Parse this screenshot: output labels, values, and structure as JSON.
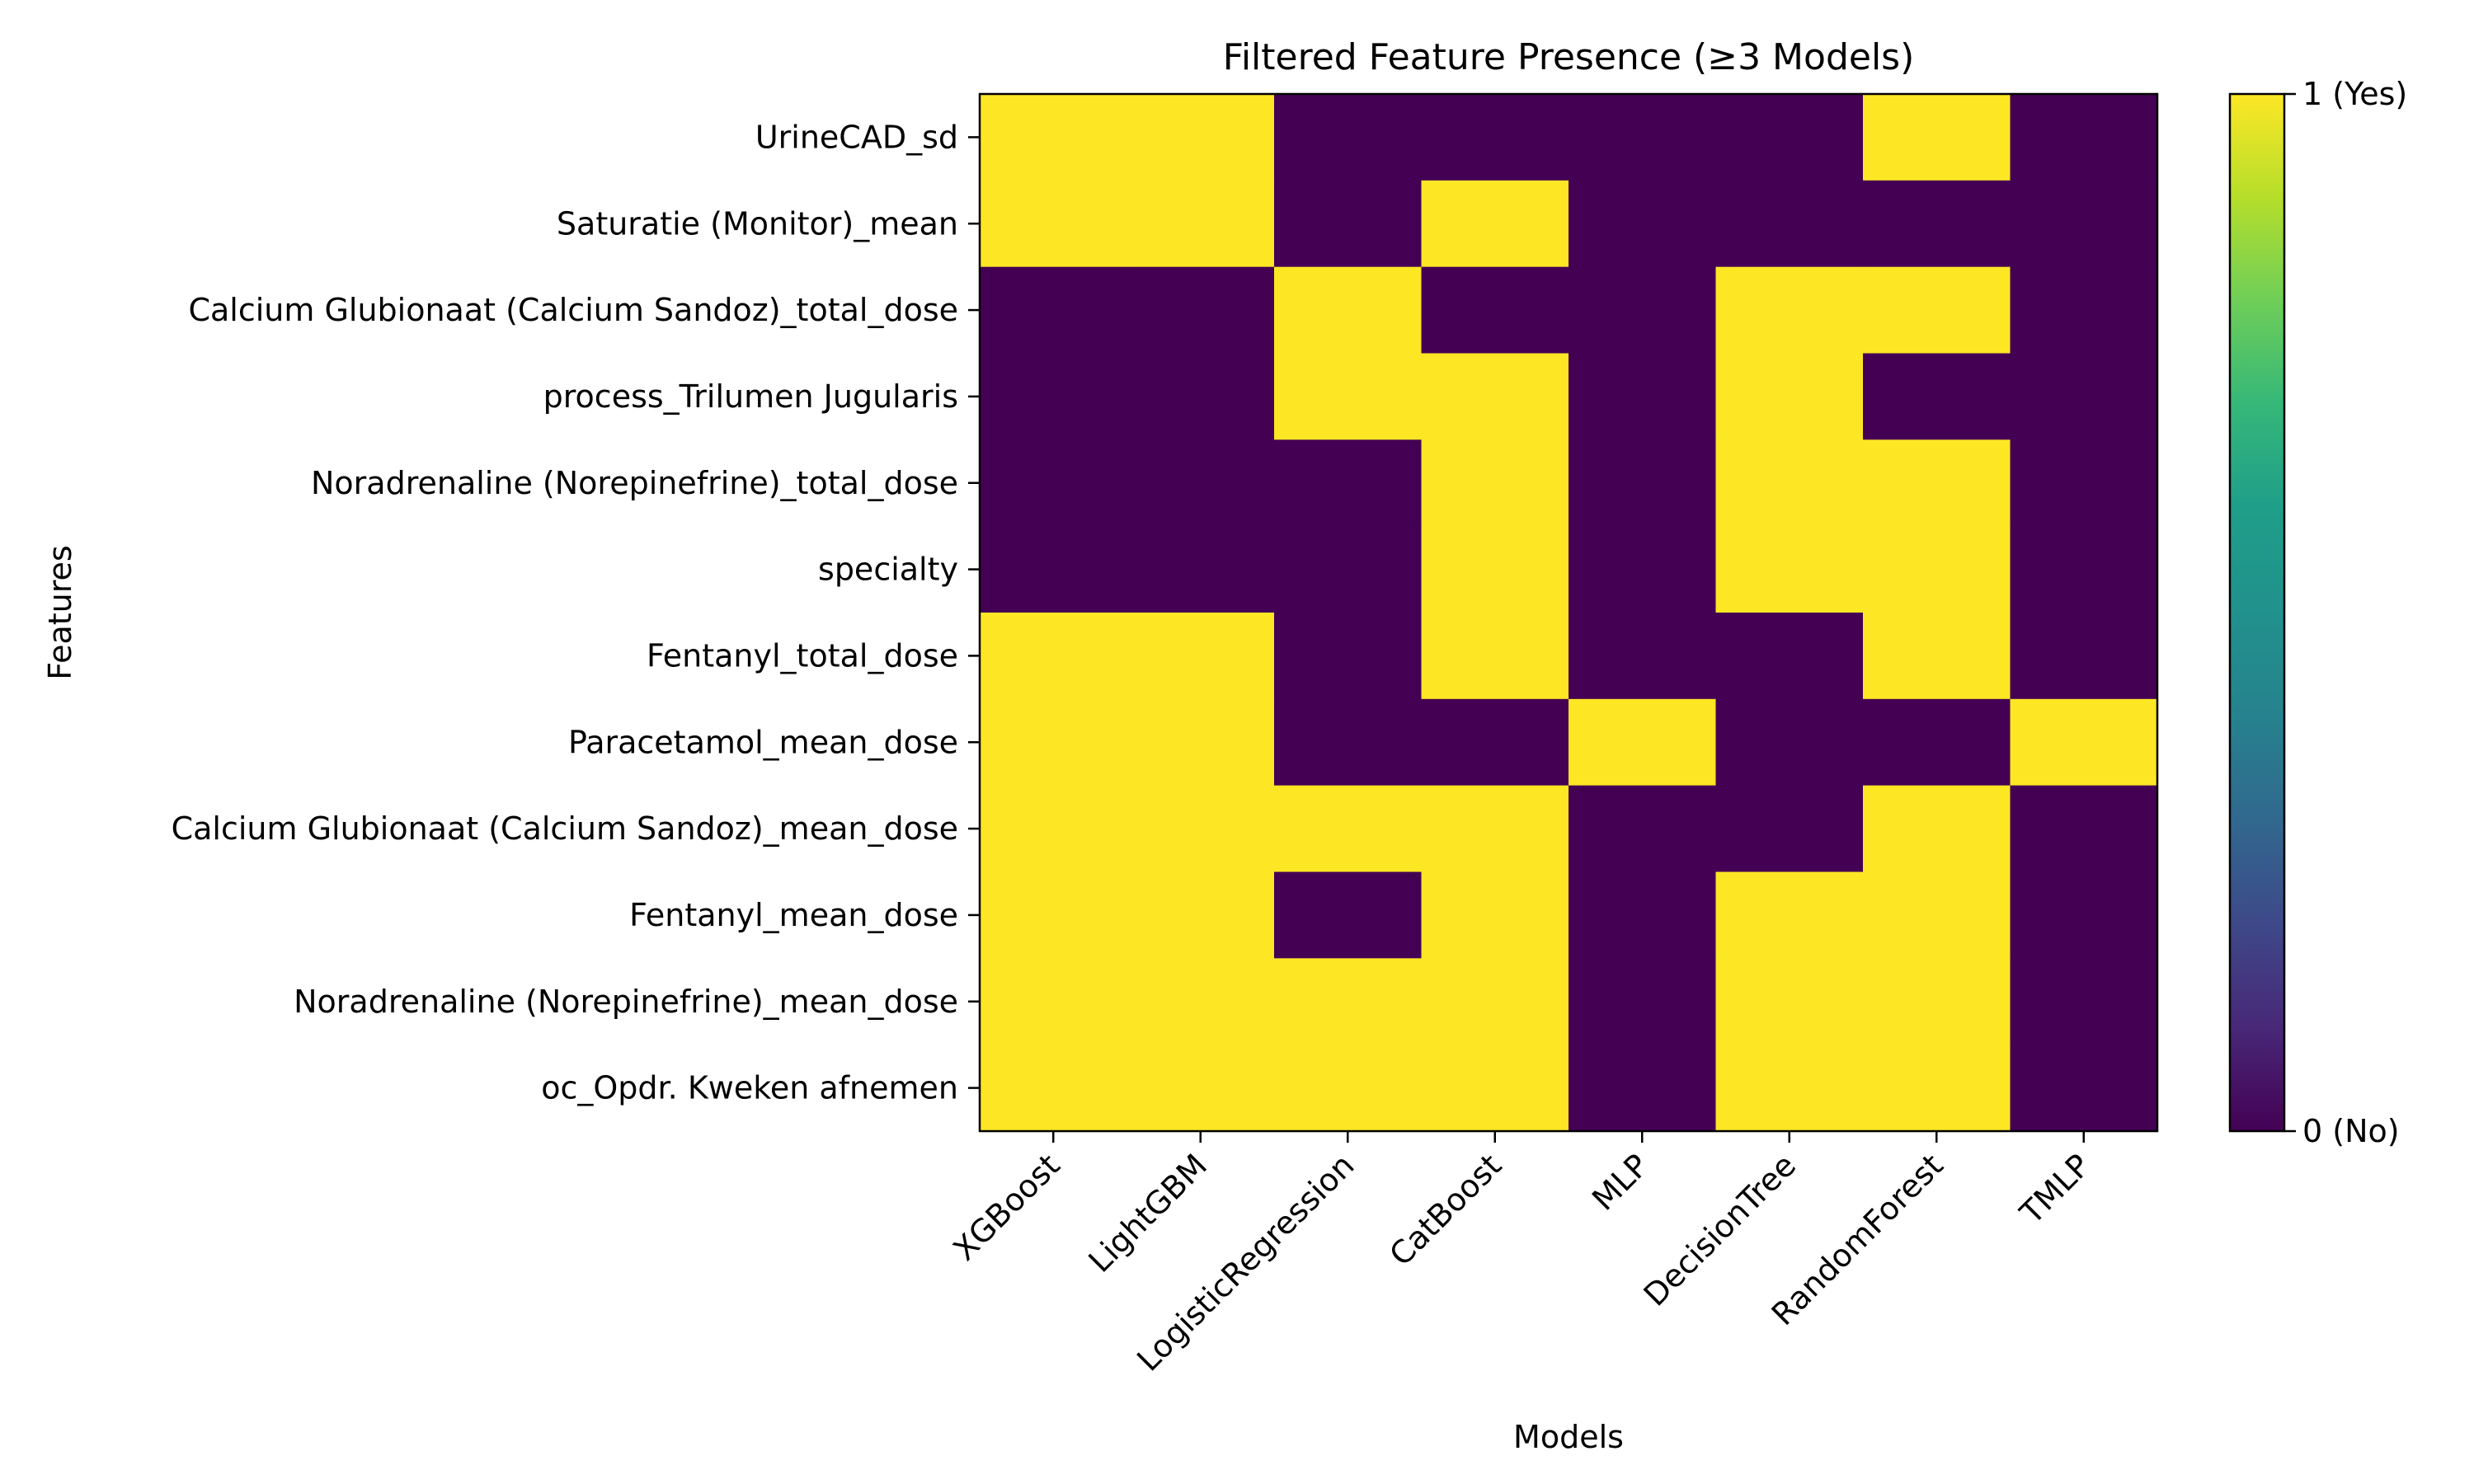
{
  "chart_data": {
    "type": "heatmap",
    "title": "Filtered Feature Presence (≥3 Models)",
    "xlabel": "Models",
    "ylabel": "Features",
    "x": [
      "XGBoost",
      "LightGBM",
      "LogisticRegression",
      "CatBoost",
      "MLP",
      "DecisionTree",
      "RandomForest",
      "TMLP"
    ],
    "y": [
      "UrineCAD_sd",
      "Saturatie (Monitor)_mean",
      "Calcium Glubionaat (Calcium Sandoz)_total_dose",
      "process_Trilumen Jugularis",
      "Noradrenaline (Norepinefrine)_total_dose",
      "specialty",
      "Fentanyl_total_dose",
      "Paracetamol_mean_dose",
      "Calcium Glubionaat (Calcium Sandoz)_mean_dose",
      "Fentanyl_mean_dose",
      "Noradrenaline (Norepinefrine)_mean_dose",
      "oc_Opdr. Kweken afnemen"
    ],
    "values": [
      [
        1,
        1,
        0,
        0,
        0,
        0,
        1,
        0
      ],
      [
        1,
        1,
        0,
        1,
        0,
        0,
        0,
        0
      ],
      [
        0,
        0,
        1,
        0,
        0,
        1,
        1,
        0
      ],
      [
        0,
        0,
        1,
        1,
        0,
        1,
        0,
        0
      ],
      [
        0,
        0,
        0,
        1,
        0,
        1,
        1,
        0
      ],
      [
        0,
        0,
        0,
        1,
        0,
        1,
        1,
        0
      ],
      [
        1,
        1,
        0,
        1,
        0,
        0,
        1,
        0
      ],
      [
        1,
        1,
        0,
        0,
        1,
        0,
        0,
        1
      ],
      [
        1,
        1,
        1,
        1,
        0,
        0,
        1,
        0
      ],
      [
        1,
        1,
        0,
        1,
        0,
        1,
        1,
        0
      ],
      [
        1,
        1,
        1,
        1,
        0,
        1,
        1,
        0
      ],
      [
        1,
        1,
        1,
        1,
        0,
        1,
        1,
        0
      ]
    ],
    "colormap": "viridis",
    "colors": {
      "yes": "#fde725",
      "no": "#440154"
    },
    "colorbar": {
      "range": [
        0,
        1
      ],
      "ticks": [
        {
          "value": 1,
          "label": "1 (Yes)"
        },
        {
          "value": 0,
          "label": "0 (No)"
        }
      ]
    },
    "grid": false
  }
}
